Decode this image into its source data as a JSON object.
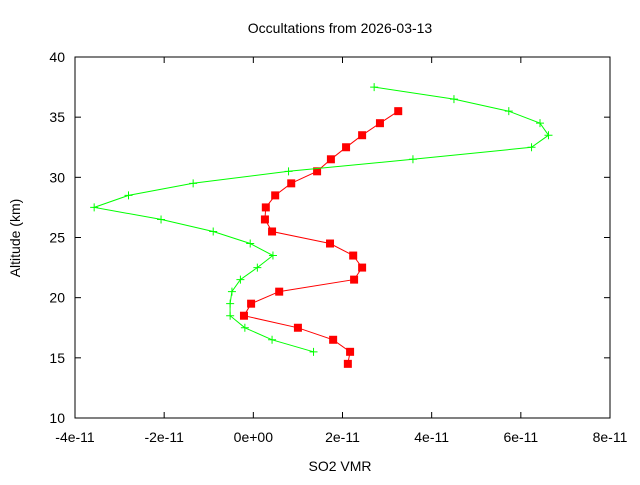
{
  "chart_data": {
    "type": "line",
    "title": "Occultations from 2026-03-13",
    "xlabel": "SO2 VMR",
    "ylabel": "Altitude (km)",
    "xlim": [
      -4e-11,
      8e-11
    ],
    "ylim": [
      10,
      40
    ],
    "xticks": [
      "-4e-11",
      "-2e-11",
      "0e+00",
      "2e-11",
      "4e-11",
      "6e-11",
      "8e-11"
    ],
    "xtick_values": [
      -4e-11,
      -2e-11,
      0,
      2e-11,
      4e-11,
      6e-11,
      8e-11
    ],
    "yticks": [
      "10",
      "15",
      "20",
      "25",
      "30",
      "35",
      "40"
    ],
    "ytick_values": [
      10,
      15,
      20,
      25,
      30,
      35,
      40
    ],
    "grid": false,
    "legend": "none",
    "series": [
      {
        "color": "#ff0000",
        "marker": "filled-square",
        "x": [
          2.12e-11,
          2.17e-11,
          1.79e-11,
          1e-11,
          -2.1e-12,
          -5e-13,
          5.8e-12,
          2.26e-11,
          2.44e-11,
          2.24e-11,
          1.72e-11,
          4.2e-12,
          2.6e-12,
          2.8e-12,
          4.9e-12,
          8.5e-12,
          1.43e-11,
          1.74e-11,
          2.08e-11,
          2.44e-11,
          2.84e-11,
          3.25e-11
        ],
        "y": [
          14.5,
          15.5,
          16.5,
          17.5,
          18.5,
          19.5,
          20.5,
          21.5,
          22.5,
          23.5,
          24.5,
          25.5,
          26.5,
          27.5,
          28.5,
          29.5,
          30.5,
          31.5,
          32.5,
          33.5,
          34.5,
          35.5
        ]
      },
      {
        "color": "#00ff00",
        "marker": "plus",
        "x": [
          1.35e-11,
          4.2e-12,
          -1.9e-12,
          -5.2e-12,
          -5.2e-12,
          -4.8e-12,
          -2.9e-12,
          9e-13,
          4.4e-12,
          -7e-13,
          -9e-12,
          -2.07e-11,
          -3.57e-11,
          -2.8e-11,
          -1.35e-11,
          7.9e-12,
          3.58e-11,
          6.24e-11,
          6.62e-11,
          6.43e-11,
          5.73e-11,
          4.5e-11,
          2.71e-11
        ],
        "y": [
          15.5,
          16.5,
          17.5,
          18.5,
          19.5,
          20.5,
          21.5,
          22.5,
          23.5,
          24.5,
          25.5,
          26.5,
          27.5,
          28.5,
          29.5,
          30.5,
          31.5,
          32.5,
          33.5,
          34.5,
          35.5,
          36.5,
          37.5
        ]
      }
    ]
  }
}
